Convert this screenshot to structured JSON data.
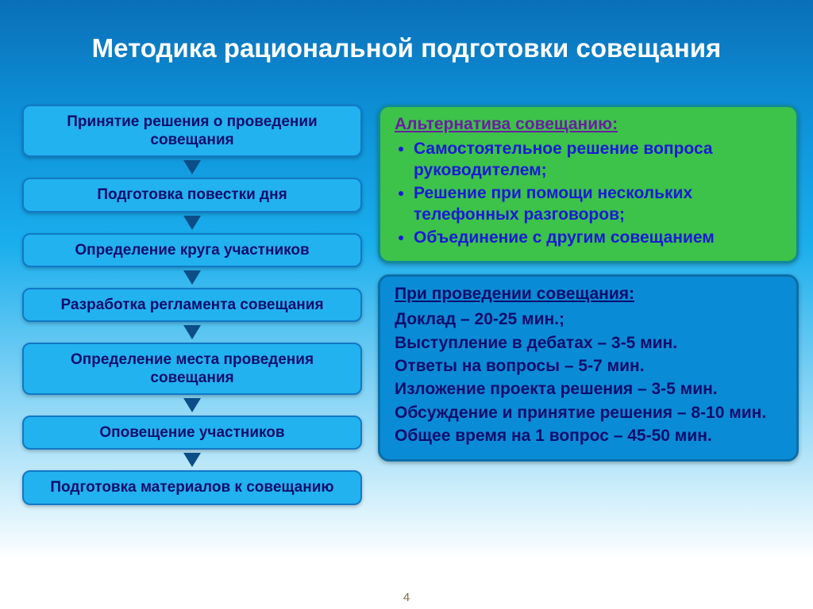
{
  "slide": {
    "title": "Методика рациональной подготовки совещания",
    "title_fontsize": 33,
    "title_color": "#ffffff",
    "bg_gradient_top": "#0a6fb8",
    "bg_gradient_mid": "#1aaeed",
    "bg_gradient_bottom": "#ffffff",
    "number": "4"
  },
  "flow": {
    "type": "flowchart",
    "direction": "vertical",
    "box_fill": "#22b2ef",
    "box_border": "#1178c6",
    "box_text_color": "#0d0d6d",
    "box_fontsize": 19,
    "box_radius": 10,
    "arrow_color": "#0b4d87",
    "steps": [
      "Принятие решения о проведении совещания",
      "Подготовка повестки дня",
      "Определение круга участников",
      "Разработка регламента совещания",
      "Определение места проведения совещания",
      "Оповещение участников",
      "Подготовка материалов к совещанию"
    ]
  },
  "alt_panel": {
    "fill": "#3dc24a",
    "border": "#0f8a9c",
    "title": "Альтернатива  совещанию:",
    "title_color": "#6a1fa0",
    "text_color": "#1a1bd6",
    "fontsize": 21,
    "items": [
      "Самостоятельное решение вопроса руководителем;",
      "Решение при помощи нескольких телефонных разговоров;",
      "Объединение с другим совещанием"
    ]
  },
  "timing_panel": {
    "fill": "#0a8bd6",
    "border": "#0a6fa8",
    "title": "При проведении совещания:",
    "title_color": "#0d0d6d",
    "text_color": "#0d0d6d",
    "fontsize": 21,
    "lines": [
      "Доклад – 20-25 мин.;",
      "Выступление в дебатах – 3-5 мин.",
      "Ответы на вопросы – 5-7 мин.",
      "Изложение проекта решения – 3-5 мин.",
      "Обсуждение и принятие решения – 8-10 мин.",
      "Общее время на 1 вопрос – 45-50 мин."
    ]
  }
}
